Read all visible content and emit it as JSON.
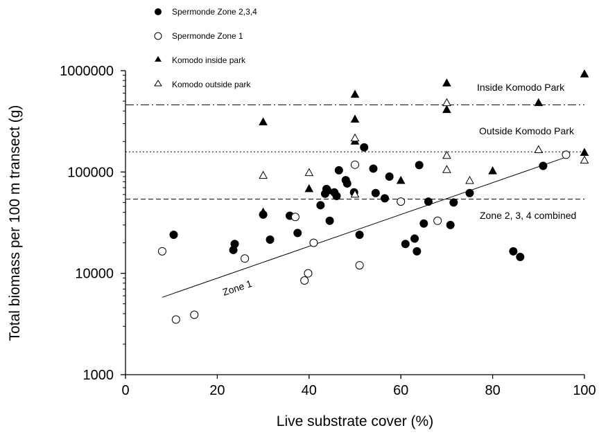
{
  "chart_data": {
    "type": "scatter",
    "title": "",
    "xlabel": "Live substrate cover (%)",
    "ylabel": "Total biomass per 100 m transect (g)",
    "xlim": [
      0,
      100
    ],
    "ylim": [
      1000,
      1000000
    ],
    "yscale": "log",
    "grid": false,
    "legend_position": "top-left",
    "x_ticks": [
      "0",
      "20",
      "40",
      "60",
      "80",
      "100"
    ],
    "y_ticks": [
      "1000",
      "10000",
      "100000",
      "1000000"
    ],
    "series": [
      {
        "name": "Spermonde Zone 2,3,4",
        "marker": "filled-circle",
        "points": [
          [
            10.5,
            24000
          ],
          [
            23.5,
            17000
          ],
          [
            23.8,
            19500
          ],
          [
            30,
            38000
          ],
          [
            31.5,
            21500
          ],
          [
            35.8,
            37000
          ],
          [
            37.5,
            25000
          ],
          [
            42.5,
            47000
          ],
          [
            43.5,
            61000
          ],
          [
            43.8,
            68000
          ],
          [
            44.5,
            33000
          ],
          [
            45.5,
            63000
          ],
          [
            46,
            58000
          ],
          [
            46.5,
            104000
          ],
          [
            48,
            83000
          ],
          [
            48.3,
            77000
          ],
          [
            49.8,
            63000
          ],
          [
            51,
            24000
          ],
          [
            52,
            175000
          ],
          [
            54,
            108000
          ],
          [
            54.5,
            62000
          ],
          [
            56.5,
            55000
          ],
          [
            57.5,
            90000
          ],
          [
            61,
            19500
          ],
          [
            63,
            22000
          ],
          [
            63.5,
            16500
          ],
          [
            64,
            117000
          ],
          [
            65,
            31000
          ],
          [
            66,
            51000
          ],
          [
            70.8,
            30000
          ],
          [
            71.5,
            50000
          ],
          [
            75,
            62000
          ],
          [
            84.5,
            16500
          ],
          [
            86,
            14500
          ],
          [
            91,
            115000
          ]
        ]
      },
      {
        "name": "Spermonde Zone 1",
        "marker": "open-circle",
        "points": [
          [
            8,
            16500
          ],
          [
            11,
            3500
          ],
          [
            15,
            3900
          ],
          [
            26,
            14000
          ],
          [
            37,
            36000
          ],
          [
            39,
            8500
          ],
          [
            39.8,
            10000
          ],
          [
            41,
            20000
          ],
          [
            50,
            118000
          ],
          [
            51,
            12000
          ],
          [
            60,
            51000
          ],
          [
            68,
            33000
          ],
          [
            96,
            148000
          ]
        ]
      },
      {
        "name": "Komodo inside park",
        "marker": "filled-triangle",
        "points": [
          [
            30,
            310000
          ],
          [
            30,
            40000
          ],
          [
            40,
            68000
          ],
          [
            44.5,
            65000
          ],
          [
            50,
            580000
          ],
          [
            50,
            330000
          ],
          [
            50,
            200000
          ],
          [
            60,
            82000
          ],
          [
            70,
            750000
          ],
          [
            70,
            410000
          ],
          [
            80,
            102000
          ],
          [
            90,
            480000
          ],
          [
            100,
            920000
          ],
          [
            100,
            155000
          ]
        ]
      },
      {
        "name": "Komodo outside park",
        "marker": "open-triangle",
        "points": [
          [
            30,
            92000
          ],
          [
            40,
            98000
          ],
          [
            50,
            215000
          ],
          [
            50,
            60000
          ],
          [
            70,
            480000
          ],
          [
            70,
            145000
          ],
          [
            70,
            105000
          ],
          [
            75,
            82000
          ],
          [
            90,
            165000
          ],
          [
            100,
            130000
          ]
        ]
      }
    ],
    "reference_lines": [
      {
        "label": "Inside Komodo Park",
        "y": 460000,
        "style": "dash-dot"
      },
      {
        "label": "Outside Komodo Park",
        "y": 158000,
        "style": "dotted"
      },
      {
        "label": "Zone 2, 3, 4 combined",
        "y": 54000,
        "style": "dashed"
      }
    ],
    "fit_lines": [
      {
        "label": "Zone 1",
        "x": [
          8,
          96
        ],
        "y": [
          5800,
          140000
        ]
      }
    ]
  }
}
